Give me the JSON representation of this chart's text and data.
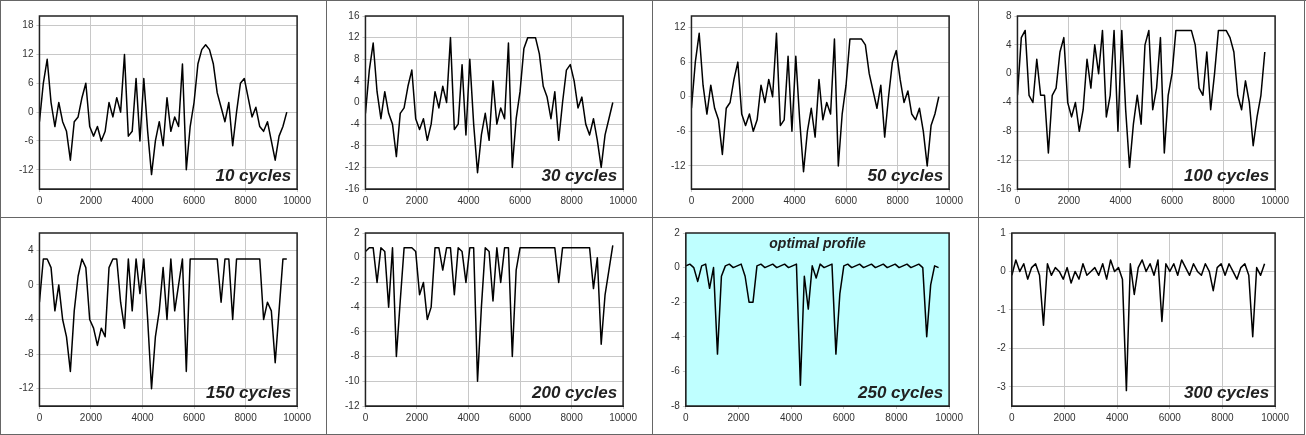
{
  "chart_data": [
    {
      "type": "line",
      "x": [
        0,
        150,
        300,
        450,
        600,
        750,
        900,
        1050,
        1200,
        1350,
        1500,
        1650,
        1800,
        1950,
        2100,
        2250,
        2400,
        2550,
        2700,
        2850,
        3000,
        3150,
        3300,
        3450,
        3600,
        3750,
        3900,
        4050,
        4200,
        4350,
        4500,
        4650,
        4800,
        4950,
        5100,
        5250,
        5400,
        5550,
        5700,
        5850,
        6000,
        6150,
        6300,
        6450,
        6600,
        6750,
        6900,
        7050,
        7200,
        7350,
        7500,
        7650,
        7800,
        7950,
        8100,
        8250,
        8400,
        8550,
        8700,
        8850,
        9000,
        9150,
        9300,
        9450,
        9600
      ],
      "series": [
        {
          "color": "#000000",
          "values": [
            -2,
            6,
            11,
            2,
            -3,
            2,
            -2,
            -4,
            -10,
            -2,
            -1,
            3,
            6,
            -3,
            -5,
            -3,
            -6,
            -4,
            2,
            -1,
            3,
            0,
            12,
            -5,
            -4,
            7,
            -6,
            7,
            -4,
            -13,
            -6,
            -2,
            -7,
            3,
            -4,
            -1,
            -3,
            10,
            -12,
            -3,
            2,
            10,
            13,
            14,
            13,
            10,
            4,
            1,
            -2,
            2,
            -7,
            0,
            6,
            7,
            3,
            -1,
            1,
            -3,
            -4,
            -2,
            -6,
            -10,
            -5,
            -3,
            0
          ]
        }
      ],
      "xlim": [
        0,
        10000
      ],
      "xticks": [
        0,
        2000,
        4000,
        6000,
        8000,
        10000
      ],
      "ylim": [
        -16,
        20
      ],
      "yticks": [
        -12,
        -6,
        0,
        6,
        12,
        18
      ],
      "grid": true,
      "annotations": [
        "10 cycles"
      ]
    },
    {
      "type": "line",
      "x": [
        0,
        150,
        300,
        450,
        600,
        750,
        900,
        1050,
        1200,
        1350,
        1500,
        1650,
        1800,
        1950,
        2100,
        2250,
        2400,
        2550,
        2700,
        2850,
        3000,
        3150,
        3300,
        3450,
        3600,
        3750,
        3900,
        4050,
        4200,
        4350,
        4500,
        4650,
        4800,
        4950,
        5100,
        5250,
        5400,
        5550,
        5700,
        5850,
        6000,
        6150,
        6300,
        6450,
        6600,
        6750,
        6900,
        7050,
        7200,
        7350,
        7500,
        7650,
        7800,
        7950,
        8100,
        8250,
        8400,
        8550,
        8700,
        8850,
        9000,
        9150,
        9300,
        9450,
        9600
      ],
      "series": [
        {
          "color": "#000000",
          "values": [
            -2,
            6,
            11,
            2,
            -3,
            2,
            -2,
            -4,
            -10,
            -2,
            -1,
            3,
            6,
            -3,
            -5,
            -3,
            -7,
            -4,
            2,
            -1,
            3,
            0,
            12,
            -5,
            -4,
            7,
            -6,
            8,
            -4,
            -13,
            -6,
            -2,
            -7,
            4,
            -4,
            -1,
            -3,
            11,
            -12,
            -3,
            2,
            10,
            12,
            12,
            12,
            9,
            3,
            1,
            -3,
            2,
            -7,
            0,
            6,
            7,
            4,
            -1,
            1,
            -4,
            -6,
            -3,
            -7,
            -12,
            -6,
            -3,
            0
          ]
        }
      ],
      "xlim": [
        0,
        10000
      ],
      "xticks": [
        0,
        2000,
        4000,
        6000,
        8000,
        10000
      ],
      "ylim": [
        -16,
        16
      ],
      "yticks": [
        -16,
        -12,
        -8,
        -4,
        0,
        4,
        8,
        12,
        16
      ],
      "grid": true,
      "annotations": [
        "30 cycles"
      ]
    },
    {
      "type": "line",
      "x": [
        0,
        150,
        300,
        450,
        600,
        750,
        900,
        1050,
        1200,
        1350,
        1500,
        1650,
        1800,
        1950,
        2100,
        2250,
        2400,
        2550,
        2700,
        2850,
        3000,
        3150,
        3300,
        3450,
        3600,
        3750,
        3900,
        4050,
        4200,
        4350,
        4500,
        4650,
        4800,
        4950,
        5100,
        5250,
        5400,
        5550,
        5700,
        5850,
        6000,
        6150,
        6300,
        6450,
        6600,
        6750,
        6900,
        7050,
        7200,
        7350,
        7500,
        7650,
        7800,
        7950,
        8100,
        8250,
        8400,
        8550,
        8700,
        8850,
        9000,
        9150,
        9300,
        9450,
        9600
      ],
      "series": [
        {
          "color": "#000000",
          "values": [
            -2,
            6,
            11,
            2,
            -3,
            2,
            -2,
            -4,
            -10,
            -2,
            -1,
            3,
            6,
            -3,
            -5,
            -3,
            -6,
            -4,
            2,
            -1,
            3,
            0,
            11,
            -5,
            -4,
            7,
            -6,
            7,
            -4,
            -13,
            -6,
            -2,
            -7,
            3,
            -4,
            -1,
            -3,
            10,
            -12,
            -3,
            2,
            10,
            10,
            10,
            10,
            9,
            4,
            1,
            -2,
            2,
            -7,
            0,
            6,
            8,
            3,
            -1,
            1,
            -3,
            -4,
            -2,
            -6,
            -12,
            -5,
            -3,
            0
          ]
        }
      ],
      "xlim": [
        0,
        10000
      ],
      "xticks": [
        0,
        2000,
        4000,
        6000,
        8000,
        10000
      ],
      "ylim": [
        -16,
        14
      ],
      "yticks": [
        -12,
        -6,
        0,
        6,
        12
      ],
      "grid": true,
      "annotations": [
        "50 cycles"
      ]
    },
    {
      "type": "line",
      "x": [
        0,
        150,
        300,
        450,
        600,
        750,
        900,
        1050,
        1200,
        1350,
        1500,
        1650,
        1800,
        1950,
        2100,
        2250,
        2400,
        2550,
        2700,
        2850,
        3000,
        3150,
        3300,
        3450,
        3600,
        3750,
        3900,
        4050,
        4200,
        4350,
        4500,
        4650,
        4800,
        4950,
        5100,
        5250,
        5400,
        5550,
        5700,
        5850,
        6000,
        6150,
        6300,
        6450,
        6600,
        6750,
        6900,
        7050,
        7200,
        7350,
        7500,
        7650,
        7800,
        7950,
        8100,
        8250,
        8400,
        8550,
        8700,
        8850,
        9000,
        9150,
        9300,
        9450,
        9600
      ],
      "series": [
        {
          "color": "#000000",
          "values": [
            -3,
            5,
            6,
            -3,
            -4,
            2,
            -3,
            -3,
            -11,
            -3,
            -2,
            3,
            5,
            -4,
            -6,
            -4,
            -8,
            -5,
            2,
            -2,
            4,
            0,
            6,
            -6,
            -3,
            6,
            -8,
            6,
            -5,
            -13,
            -7,
            -3,
            -7,
            4,
            6,
            -5,
            -2,
            5,
            -11,
            -3,
            0,
            6,
            6,
            6,
            6,
            6,
            4,
            -2,
            -3,
            3,
            -5,
            0,
            6,
            6,
            6,
            5,
            3,
            -3,
            -5,
            -1,
            -4,
            -10,
            -6,
            -3,
            3
          ]
        }
      ],
      "xlim": [
        0,
        10000
      ],
      "xticks": [
        0,
        2000,
        4000,
        6000,
        8000,
        10000
      ],
      "ylim": [
        -16,
        8
      ],
      "yticks": [
        -16,
        -12,
        -8,
        -4,
        0,
        4,
        8
      ],
      "grid": true,
      "annotations": [
        "100 cycles"
      ]
    },
    {
      "type": "line",
      "x": [
        0,
        150,
        300,
        450,
        600,
        750,
        900,
        1050,
        1200,
        1350,
        1500,
        1650,
        1800,
        1950,
        2100,
        2250,
        2400,
        2550,
        2700,
        2850,
        3000,
        3150,
        3300,
        3450,
        3600,
        3750,
        3900,
        4050,
        4200,
        4350,
        4500,
        4650,
        4800,
        4950,
        5100,
        5250,
        5400,
        5550,
        5700,
        5850,
        6000,
        6150,
        6300,
        6450,
        6600,
        6750,
        6900,
        7050,
        7200,
        7350,
        7500,
        7650,
        7800,
        7950,
        8100,
        8250,
        8400,
        8550,
        8700,
        8850,
        9000,
        9150,
        9300,
        9450,
        9600
      ],
      "series": [
        {
          "color": "#000000",
          "values": [
            -2,
            3,
            3,
            2,
            -3,
            0,
            -4,
            -6,
            -10,
            -3,
            1,
            3,
            2,
            -4,
            -5,
            -7,
            -5,
            -6,
            2,
            3,
            3,
            -2,
            -5,
            3,
            -3,
            3,
            -1,
            3,
            -4,
            -12,
            -6,
            -3,
            2,
            -4,
            3,
            -3,
            0,
            3,
            -10,
            3,
            3,
            3,
            3,
            3,
            3,
            3,
            3,
            -2,
            3,
            3,
            -4,
            3,
            3,
            3,
            3,
            3,
            3,
            3,
            -4,
            -2,
            -3,
            -9,
            -3,
            3,
            3
          ]
        }
      ],
      "xlim": [
        0,
        10000
      ],
      "xticks": [
        0,
        2000,
        4000,
        6000,
        8000,
        10000
      ],
      "ylim": [
        -14,
        6
      ],
      "yticks": [
        -12,
        -8,
        -4,
        0,
        4
      ],
      "grid": true,
      "annotations": [
        "150 cycles"
      ]
    },
    {
      "type": "line",
      "x": [
        0,
        150,
        300,
        450,
        600,
        750,
        900,
        1050,
        1200,
        1350,
        1500,
        1650,
        1800,
        1950,
        2100,
        2250,
        2400,
        2550,
        2700,
        2850,
        3000,
        3150,
        3300,
        3450,
        3600,
        3750,
        3900,
        4050,
        4200,
        4350,
        4500,
        4650,
        4800,
        4950,
        5100,
        5250,
        5400,
        5550,
        5700,
        5850,
        6000,
        6150,
        6300,
        6450,
        6600,
        6750,
        6900,
        7050,
        7200,
        7350,
        7500,
        7650,
        7800,
        7950,
        8100,
        8250,
        8400,
        8550,
        8700,
        8850,
        9000,
        9150,
        9300,
        9450,
        9600
      ],
      "series": [
        {
          "color": "#000000",
          "values": [
            0.5,
            0.8,
            0.8,
            -2,
            0.8,
            0.5,
            -4,
            0.8,
            -8,
            -3.5,
            0.8,
            0.8,
            0.8,
            0.5,
            -3,
            -2,
            -5,
            -4,
            0.8,
            0.8,
            -1,
            0.8,
            0.8,
            -3,
            0.8,
            0.5,
            -2,
            0.8,
            0.8,
            -10,
            -4,
            0.8,
            0.5,
            -3.5,
            0.8,
            -2,
            0.8,
            0.8,
            -8,
            -1,
            0.8,
            0.8,
            0.8,
            0.8,
            0.8,
            0.8,
            0.8,
            0.8,
            0.8,
            0.8,
            -2,
            0.8,
            0.8,
            0.8,
            0.8,
            0.8,
            0.8,
            0.8,
            0.8,
            -2.5,
            0,
            -7,
            -3,
            -1,
            1
          ]
        }
      ],
      "xlim": [
        0,
        10000
      ],
      "xticks": [
        0,
        2000,
        4000,
        6000,
        8000,
        10000
      ],
      "ylim": [
        -12,
        2
      ],
      "yticks": [
        -12,
        -10,
        -8,
        -6,
        -4,
        -2,
        0,
        2
      ],
      "grid": true,
      "annotations": [
        "200 cycles"
      ]
    },
    {
      "type": "line",
      "title": "optimal profile",
      "x": [
        0,
        150,
        300,
        450,
        600,
        750,
        900,
        1050,
        1200,
        1350,
        1500,
        1650,
        1800,
        1950,
        2100,
        2250,
        2400,
        2550,
        2700,
        2850,
        3000,
        3150,
        3300,
        3450,
        3600,
        3750,
        3900,
        4050,
        4200,
        4350,
        4500,
        4650,
        4800,
        4950,
        5100,
        5250,
        5400,
        5550,
        5700,
        5850,
        6000,
        6150,
        6300,
        6450,
        6600,
        6750,
        6900,
        7050,
        7200,
        7350,
        7500,
        7650,
        7800,
        7950,
        8100,
        8250,
        8400,
        8550,
        8700,
        8850,
        9000,
        9150,
        9300,
        9450,
        9600
      ],
      "series": [
        {
          "color": "#000000",
          "values": [
            0.1,
            0.2,
            0,
            -0.8,
            0.1,
            0.2,
            -1.2,
            0,
            -5,
            -0.5,
            0.1,
            0.2,
            0,
            0.1,
            0.2,
            -0.5,
            -2,
            -2,
            0.1,
            0.2,
            0,
            0.1,
            0.2,
            0,
            0.1,
            0.2,
            0,
            0.1,
            0.2,
            -6.8,
            -0.5,
            -2.4,
            0.1,
            -0.6,
            0.2,
            0,
            0.1,
            0.2,
            -5,
            -1.5,
            0.1,
            0.2,
            0,
            0.1,
            0.2,
            0,
            0.1,
            0.2,
            0,
            0.1,
            0.2,
            0,
            0.1,
            0.2,
            0,
            0.1,
            0.2,
            0,
            0.1,
            0.2,
            0,
            -4,
            -1,
            0.1,
            0
          ]
        }
      ],
      "xlim": [
        0,
        10000
      ],
      "xticks": [
        0,
        2000,
        4000,
        6000,
        8000,
        10000
      ],
      "ylim": [
        -8,
        2
      ],
      "yticks": [
        -8,
        -6,
        -4,
        -2,
        0,
        2
      ],
      "grid": true,
      "bands": [
        {
          "axis": "y",
          "from": -8,
          "to": 2,
          "color": "#bfffff"
        }
      ],
      "annotations": [
        "250 cycles"
      ]
    },
    {
      "type": "line",
      "x": [
        0,
        150,
        300,
        450,
        600,
        750,
        900,
        1050,
        1200,
        1350,
        1500,
        1650,
        1800,
        1950,
        2100,
        2250,
        2400,
        2550,
        2700,
        2850,
        3000,
        3150,
        3300,
        3450,
        3600,
        3750,
        3900,
        4050,
        4200,
        4350,
        4500,
        4650,
        4800,
        4950,
        5100,
        5250,
        5400,
        5550,
        5700,
        5850,
        6000,
        6150,
        6300,
        6450,
        6600,
        6750,
        6900,
        7050,
        7200,
        7350,
        7500,
        7650,
        7800,
        7950,
        8100,
        8250,
        8400,
        8550,
        8700,
        8850,
        9000,
        9150,
        9300,
        9450,
        9600
      ],
      "series": [
        {
          "color": "#000000",
          "values": [
            -0.1,
            0.3,
            0,
            0.2,
            -0.2,
            0.1,
            0.2,
            -0.1,
            -1.4,
            0.2,
            -0.1,
            0.1,
            0,
            -0.2,
            0.1,
            -0.3,
            0,
            -0.2,
            0.2,
            -0.1,
            0,
            0.1,
            -0.1,
            0.2,
            -0.2,
            0.3,
            0,
            0.1,
            -0.2,
            -3.1,
            0.2,
            -0.6,
            0.1,
            0.3,
            0,
            0.2,
            -0.1,
            0.3,
            -1.3,
            0.2,
            0,
            0.2,
            -0.1,
            0.3,
            0.1,
            -0.1,
            0.2,
            0,
            -0.1,
            0.2,
            0,
            -0.5,
            0.1,
            0.2,
            -0.1,
            0.2,
            0,
            -0.2,
            0.1,
            0.2,
            -0.1,
            -1.7,
            0.1,
            -0.1,
            0.2
          ]
        }
      ],
      "xlim": [
        0,
        10000
      ],
      "xticks": [
        0,
        2000,
        4000,
        6000,
        8000,
        10000
      ],
      "ylim": [
        -3.5,
        1
      ],
      "yticks": [
        -3,
        -2,
        -1,
        0,
        1
      ],
      "grid": true,
      "annotations": [
        "300 cycles"
      ]
    }
  ]
}
